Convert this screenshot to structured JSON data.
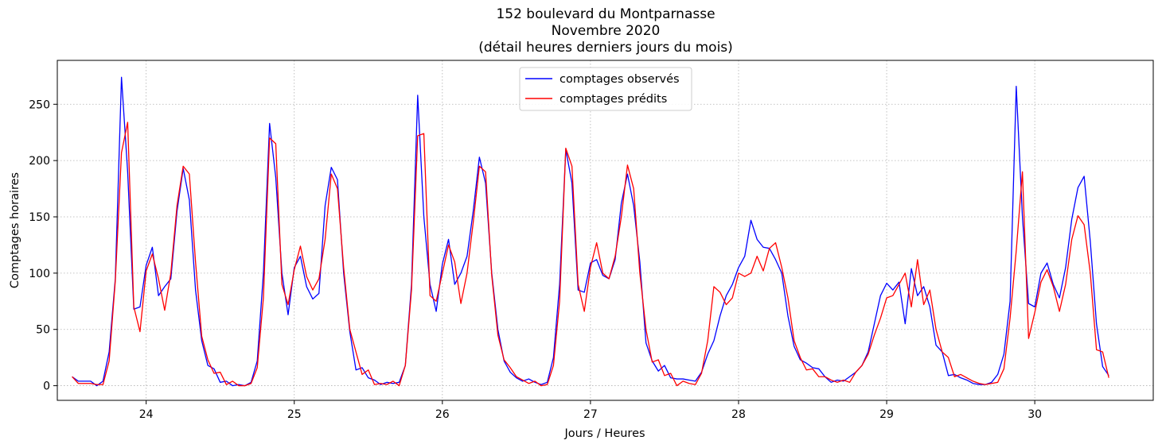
{
  "chart_data": {
    "type": "line",
    "title": [
      "152 boulevard du Montparnasse",
      "Novembre 2020",
      "(détail heures derniers jours du mois)"
    ],
    "xlabel": "Jours / Heures",
    "ylabel": "Comptages horaires",
    "xlim": [
      23.4,
      30.8
    ],
    "ylim": [
      -13,
      289
    ],
    "xticks": [
      24,
      25,
      26,
      27,
      28,
      29,
      30
    ],
    "xtick_labels": [
      "24",
      "25",
      "26",
      "27",
      "28",
      "29",
      "30"
    ],
    "yticks": [
      0,
      50,
      100,
      150,
      200,
      250
    ],
    "ytick_labels": [
      "0",
      "50",
      "100",
      "150",
      "200",
      "250"
    ],
    "grid": true,
    "legend_position": "top-center",
    "x_start": 23.5,
    "x_step_hours": 1,
    "series": [
      {
        "name": "comptages observés",
        "color": "#0000ff",
        "values": [
          8,
          4,
          4,
          4,
          0,
          4,
          30,
          95,
          274,
          190,
          68,
          70,
          107,
          123,
          80,
          88,
          95,
          155,
          193,
          165,
          85,
          40,
          18,
          15,
          3,
          4,
          0,
          1,
          0,
          3,
          22,
          100,
          233,
          185,
          100,
          63,
          105,
          115,
          88,
          77,
          82,
          160,
          194,
          183,
          100,
          48,
          14,
          16,
          7,
          5,
          1,
          3,
          2,
          3,
          18,
          90,
          258,
          150,
          90,
          66,
          108,
          130,
          90,
          100,
          115,
          155,
          203,
          180,
          100,
          50,
          22,
          12,
          7,
          4,
          6,
          3,
          1,
          3,
          25,
          90,
          210,
          180,
          85,
          83,
          109,
          112,
          98,
          95,
          112,
          162,
          188,
          160,
          110,
          38,
          22,
          13,
          18,
          7,
          6,
          6,
          5,
          4,
          12,
          28,
          40,
          62,
          80,
          90,
          105,
          115,
          147,
          130,
          123,
          122,
          112,
          100,
          62,
          35,
          23,
          20,
          16,
          15,
          8,
          3,
          5,
          4,
          8,
          12,
          18,
          30,
          55,
          80,
          91,
          85,
          92,
          55,
          104,
          80,
          88,
          70,
          36,
          30,
          9,
          10,
          7,
          5,
          2,
          1,
          1,
          3,
          10,
          28,
          75,
          266,
          150,
          73,
          70,
          100,
          109,
          90,
          78,
          105,
          148,
          176,
          186,
          128,
          55,
          17,
          9
        ],
        "note": ""
      },
      {
        "name": "comptages prédits",
        "color": "#ff0000",
        "values": [
          8,
          2,
          2,
          2,
          1,
          1,
          22,
          93,
          207,
          234,
          70,
          48,
          102,
          117,
          95,
          67,
          100,
          160,
          195,
          188,
          110,
          44,
          23,
          11,
          12,
          1,
          4,
          0,
          0,
          2,
          16,
          78,
          220,
          215,
          90,
          72,
          103,
          124,
          97,
          85,
          95,
          130,
          188,
          175,
          105,
          50,
          30,
          10,
          14,
          1,
          2,
          1,
          4,
          0,
          18,
          85,
          222,
          224,
          80,
          75,
          100,
          125,
          110,
          73,
          100,
          145,
          195,
          190,
          98,
          45,
          23,
          16,
          8,
          5,
          2,
          4,
          0,
          1,
          18,
          75,
          211,
          195,
          90,
          66,
          105,
          127,
          100,
          95,
          115,
          150,
          196,
          175,
          100,
          50,
          21,
          23,
          9,
          11,
          0,
          4,
          2,
          1,
          11,
          40,
          88,
          83,
          72,
          78,
          100,
          97,
          100,
          115,
          102,
          122,
          127,
          105,
          78,
          40,
          25,
          14,
          15,
          8,
          8,
          5,
          3,
          5,
          3,
          12,
          18,
          28,
          45,
          60,
          78,
          80,
          90,
          100,
          70,
          112,
          72,
          85,
          50,
          30,
          25,
          8,
          10,
          7,
          4,
          2,
          1,
          2,
          3,
          15,
          60,
          120,
          190,
          42,
          65,
          92,
          103,
          88,
          66,
          90,
          130,
          151,
          143,
          100,
          32,
          30,
          7
        ],
        "note": ""
      }
    ]
  }
}
